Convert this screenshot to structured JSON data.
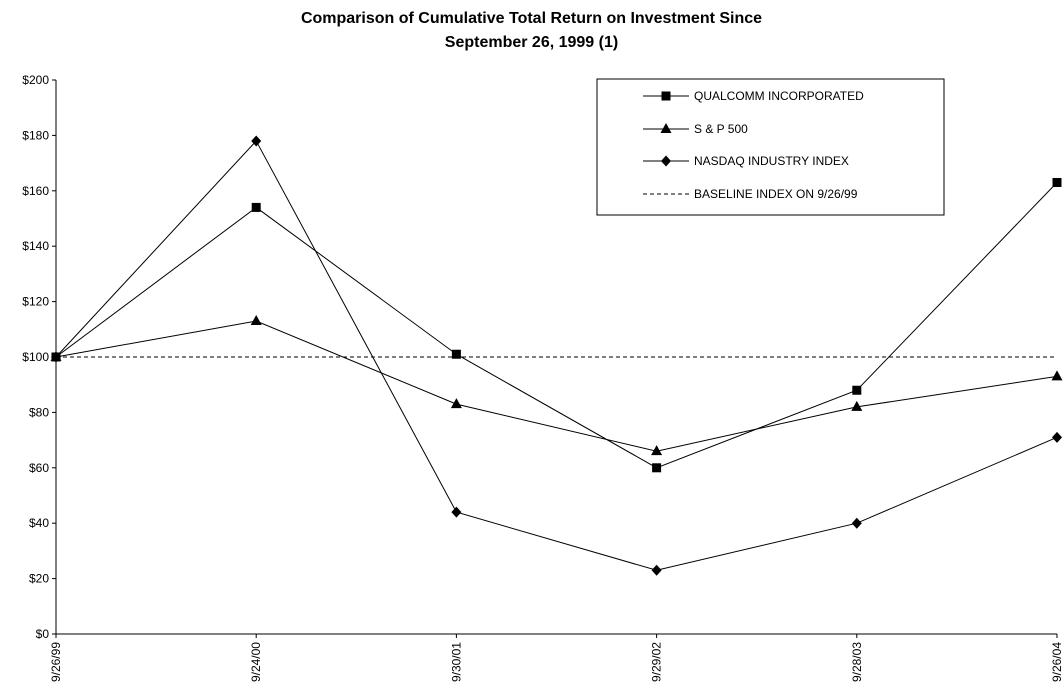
{
  "chart_data": {
    "type": "line",
    "title": "Comparison of Cumulative Total Return on Investment Since",
    "subtitle": "September 26, 1999 (1)",
    "xlabel": "",
    "ylabel": "",
    "categories": [
      "9/26/99",
      "9/24/00",
      "9/30/01",
      "9/29/02",
      "9/28/03",
      "9/26/04"
    ],
    "ylim": [
      0,
      200
    ],
    "y_ticks": [
      0,
      20,
      40,
      60,
      80,
      100,
      120,
      140,
      160,
      180,
      200
    ],
    "y_tick_labels": [
      "$0",
      "$20",
      "$40",
      "$60",
      "$80",
      "$100",
      "$120",
      "$140",
      "$160",
      "$180",
      "$200"
    ],
    "grid": false,
    "legend_position": "top-right",
    "series": [
      {
        "name": "QUALCOMM INCORPORATED",
        "marker": "square",
        "values": [
          100,
          154,
          101,
          60,
          88,
          163
        ]
      },
      {
        "name": "S & P 500",
        "marker": "triangle",
        "values": [
          100,
          113,
          83,
          66,
          82,
          93
        ]
      },
      {
        "name": "NASDAQ INDUSTRY INDEX",
        "marker": "diamond",
        "values": [
          100,
          178,
          44,
          23,
          40,
          71
        ]
      }
    ],
    "baseline": {
      "name": "BASELINE INDEX ON 9/26/99",
      "value": 100,
      "style": "dashed"
    }
  }
}
